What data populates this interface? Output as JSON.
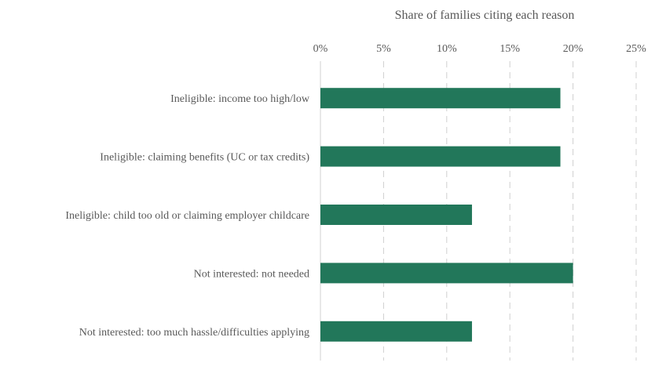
{
  "chart_data": {
    "type": "bar",
    "orientation": "horizontal",
    "title": "",
    "xlabel": "Share of families citing each reason",
    "ylabel": "",
    "xaxis_position": "top",
    "categories": [
      "Ineligible: income too high/low",
      "Ineligible: claiming benefits (UC or tax credits)",
      "Ineligible: child too old or claiming employer childcare",
      "Not interested: not needed",
      "Not interested: too much hassle/difficulties applying"
    ],
    "values": [
      19,
      19,
      12,
      20,
      12
    ],
    "unit": "%",
    "xlim": [
      0,
      25
    ],
    "ticks": [
      0,
      5,
      10,
      15,
      20,
      25
    ],
    "tick_labels": [
      "0%",
      "5%",
      "10%",
      "15%",
      "20%",
      "25%"
    ],
    "grid": "vertical-dashed",
    "legend": "none",
    "bar_color": "#22775A",
    "grid_color": "#D0D0D0",
    "text_color": "#595959"
  }
}
